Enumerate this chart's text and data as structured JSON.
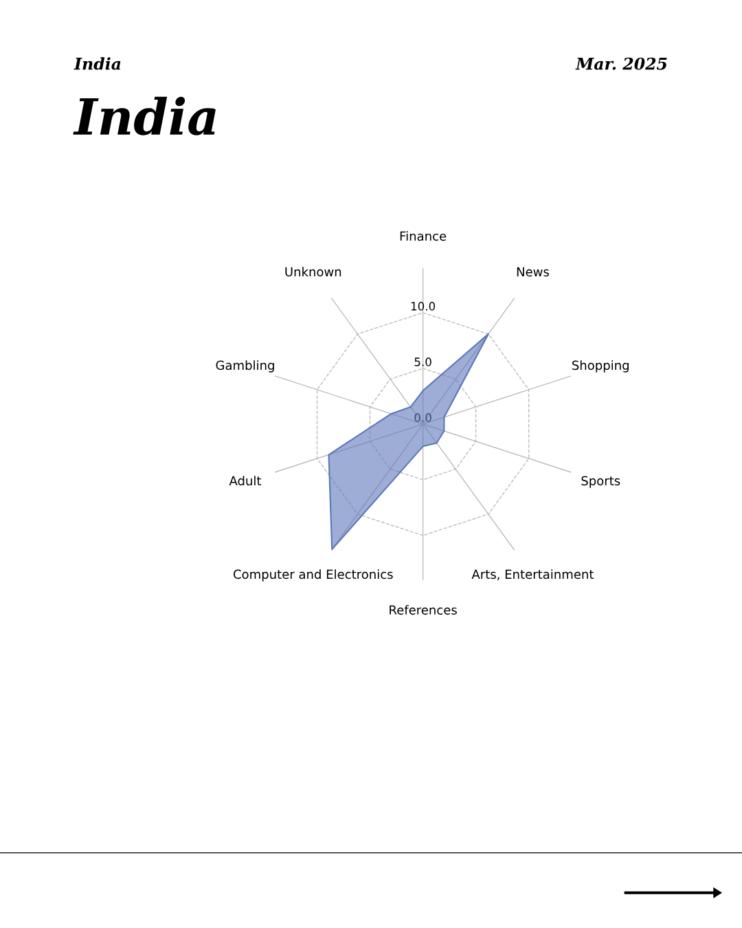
{
  "chart_data": {
    "type": "radar",
    "title": "India",
    "subtitle": "India",
    "annotations": [
      "Mar. 2025"
    ],
    "categories": [
      "Finance",
      "News",
      "Shopping",
      "Sports",
      "Arts, Entertainment",
      "References",
      "Computer and Electronics",
      "Adult",
      "Gambling",
      "Unknown"
    ],
    "series": [
      {
        "color": "#5b77b9",
        "values": [
          3.0,
          10.0,
          2.0,
          2.0,
          2.1,
          2.0,
          13.9,
          8.9,
          3.0,
          1.9
        ]
      }
    ],
    "ylim": [
      0,
      14
    ],
    "yticks": [
      {
        "value": 0,
        "label": "0.0"
      },
      {
        "value": 5,
        "label": "5.0"
      },
      {
        "value": 10,
        "label": "10.0"
      }
    ],
    "grid": true,
    "legend": false
  }
}
